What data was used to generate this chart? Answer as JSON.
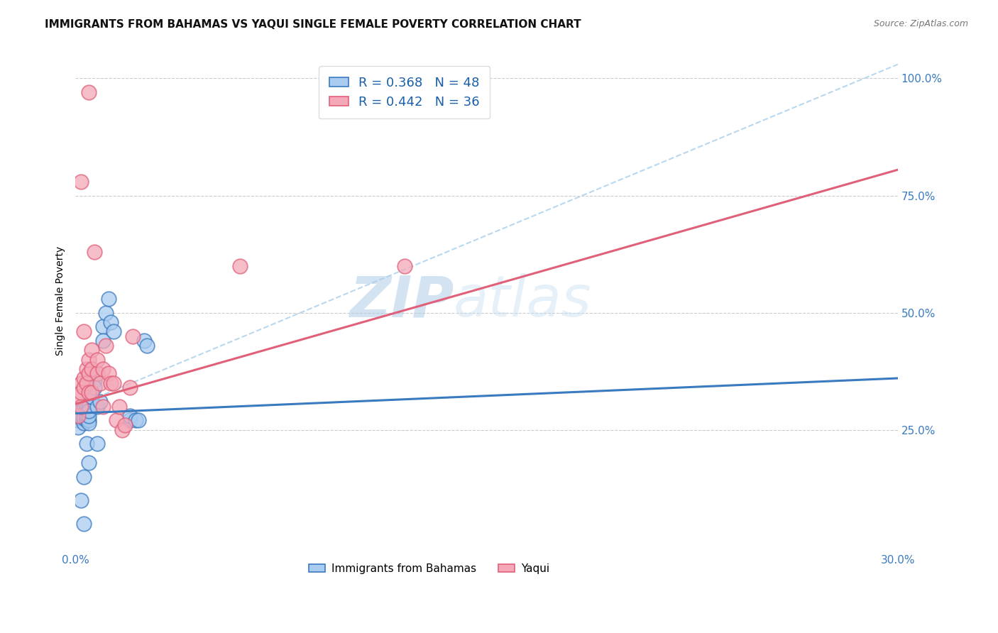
{
  "title": "IMMIGRANTS FROM BAHAMAS VS YAQUI SINGLE FEMALE POVERTY CORRELATION CHART",
  "source": "Source: ZipAtlas.com",
  "ylabel": "Single Female Poverty",
  "series1_label": "Immigrants from Bahamas",
  "series2_label": "Yaqui",
  "R1": 0.368,
  "N1": 48,
  "R2": 0.442,
  "N2": 36,
  "color1": "#aaccf0",
  "color2": "#f4a8b8",
  "trendline1_color": "#3a7abf",
  "trendline2_color": "#e0607a",
  "refline_color": "#b8d8f0",
  "xlim": [
    0.0,
    0.3
  ],
  "ylim": [
    0.0,
    1.05
  ],
  "xticks": [
    0.0,
    0.05,
    0.1,
    0.15,
    0.2,
    0.25,
    0.3
  ],
  "xtick_labels": [
    "0.0%",
    "",
    "",
    "",
    "",
    "",
    "30.0%"
  ],
  "ytick_positions": [
    0.25,
    0.5,
    0.75,
    1.0
  ],
  "ytick_labels": [
    "25.0%",
    "50.0%",
    "75.0%",
    "100.0%"
  ],
  "trendline1_x0": 0.0,
  "trendline1_y0": 0.285,
  "trendline1_x1": 0.3,
  "trendline1_y1": 0.36,
  "trendline2_x0": 0.0,
  "trendline2_y0": 0.305,
  "trendline2_x1": 0.3,
  "trendline2_y1": 0.805,
  "refline_x0": 0.0,
  "refline_y0": 0.3,
  "refline_x1": 0.3,
  "refline_y1": 1.03,
  "series1_x": [
    0.001,
    0.001,
    0.001,
    0.002,
    0.002,
    0.002,
    0.002,
    0.003,
    0.003,
    0.003,
    0.003,
    0.003,
    0.004,
    0.004,
    0.004,
    0.004,
    0.004,
    0.005,
    0.005,
    0.005,
    0.005,
    0.005,
    0.005,
    0.006,
    0.006,
    0.007,
    0.007,
    0.008,
    0.008,
    0.009,
    0.01,
    0.01,
    0.011,
    0.012,
    0.013,
    0.014,
    0.02,
    0.02,
    0.022,
    0.023,
    0.025,
    0.026,
    0.002,
    0.003,
    0.004,
    0.003,
    0.008,
    0.005
  ],
  "series1_y": [
    0.285,
    0.27,
    0.255,
    0.275,
    0.285,
    0.29,
    0.28,
    0.295,
    0.275,
    0.265,
    0.285,
    0.275,
    0.3,
    0.285,
    0.27,
    0.275,
    0.28,
    0.32,
    0.3,
    0.27,
    0.265,
    0.28,
    0.29,
    0.35,
    0.32,
    0.355,
    0.34,
    0.37,
    0.3,
    0.31,
    0.47,
    0.44,
    0.5,
    0.53,
    0.48,
    0.46,
    0.27,
    0.28,
    0.27,
    0.27,
    0.44,
    0.43,
    0.1,
    0.05,
    0.22,
    0.15,
    0.22,
    0.18
  ],
  "series2_x": [
    0.001,
    0.001,
    0.002,
    0.002,
    0.002,
    0.003,
    0.003,
    0.004,
    0.004,
    0.005,
    0.005,
    0.005,
    0.006,
    0.006,
    0.006,
    0.007,
    0.008,
    0.008,
    0.009,
    0.01,
    0.01,
    0.011,
    0.012,
    0.013,
    0.014,
    0.015,
    0.016,
    0.017,
    0.018,
    0.02,
    0.021,
    0.06,
    0.002,
    0.003,
    0.12,
    0.005
  ],
  "series2_y": [
    0.28,
    0.32,
    0.3,
    0.35,
    0.33,
    0.34,
    0.36,
    0.38,
    0.35,
    0.37,
    0.4,
    0.33,
    0.42,
    0.38,
    0.33,
    0.63,
    0.37,
    0.4,
    0.35,
    0.38,
    0.3,
    0.43,
    0.37,
    0.35,
    0.35,
    0.27,
    0.3,
    0.25,
    0.26,
    0.34,
    0.45,
    0.6,
    0.78,
    0.46,
    0.6,
    0.97
  ],
  "watermark_zip": "ZIP",
  "watermark_atlas": "atlas",
  "title_fontsize": 11,
  "axis_label_fontsize": 10,
  "tick_fontsize": 11
}
